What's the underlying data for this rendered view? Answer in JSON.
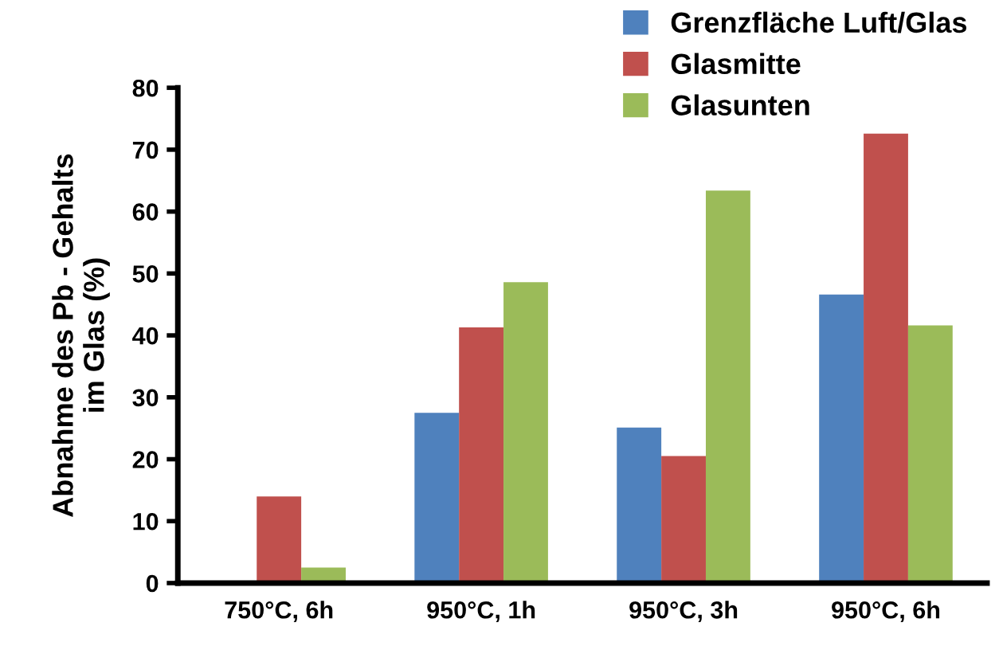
{
  "chart_data": {
    "type": "bar",
    "ylabel": "Abnahme des Pb - Gehalts\nim Glas (%)",
    "categories": [
      "750°C, 6h",
      "950°C, 1h",
      "950°C, 3h",
      "950°C, 6h"
    ],
    "series": [
      {
        "name": "Grenzfläche Luft/Glas",
        "color": "#4f81bd",
        "values": [
          0,
          27.5,
          25.1,
          46.6
        ]
      },
      {
        "name": "Glasmitte",
        "color": "#c0504d",
        "values": [
          14.0,
          41.3,
          20.5,
          72.6
        ]
      },
      {
        "name": "Glasunten",
        "color": "#9bbb59",
        "values": [
          2.5,
          48.6,
          63.4,
          41.6
        ]
      }
    ],
    "ylim": [
      0,
      80
    ],
    "yticks": [
      0,
      10,
      20,
      30,
      40,
      50,
      60,
      70,
      80
    ],
    "grid": false,
    "legend": "top right"
  }
}
